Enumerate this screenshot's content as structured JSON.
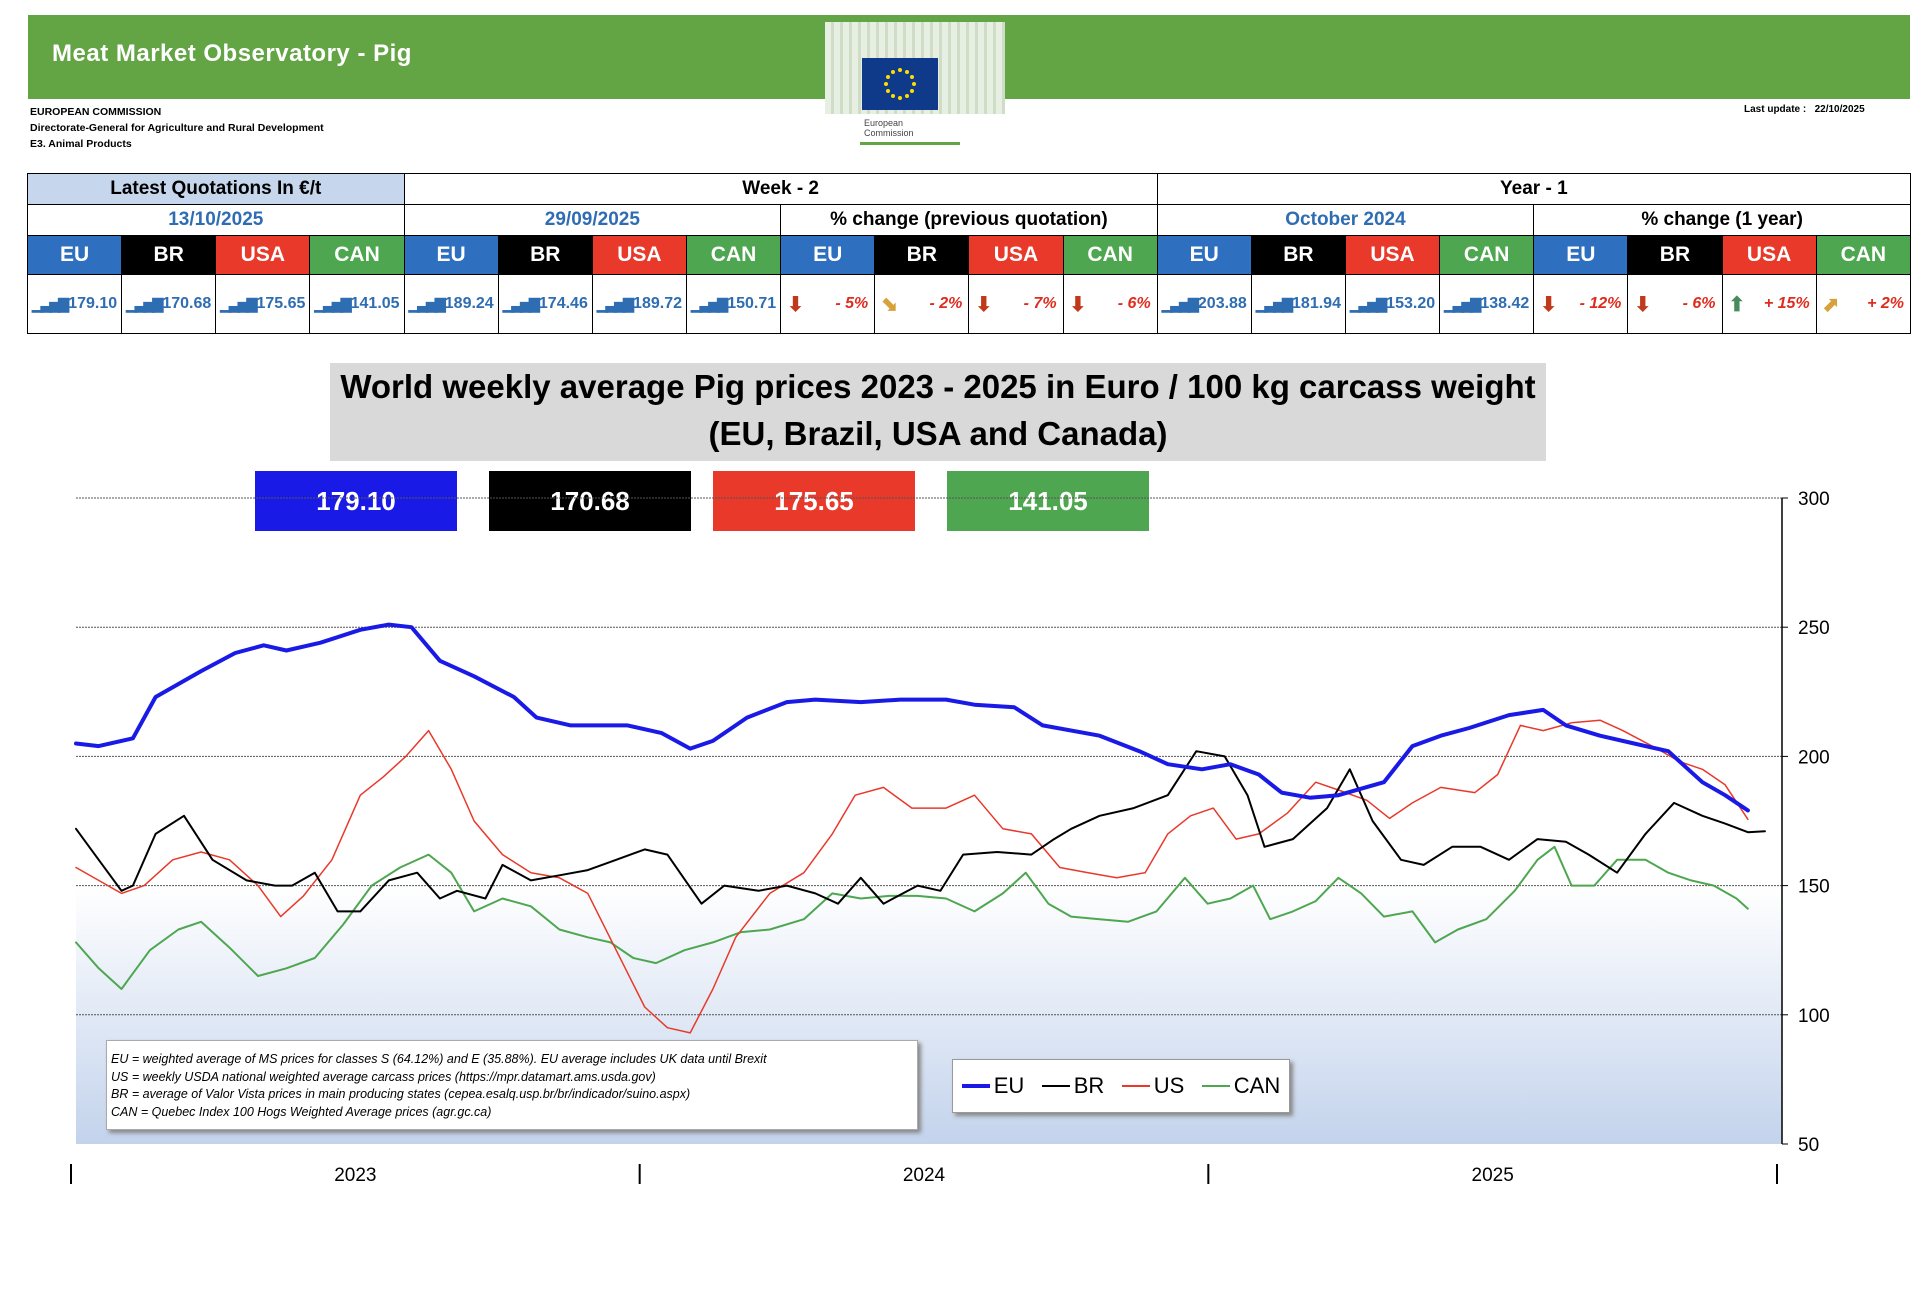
{
  "header": {
    "title": "Meat Market Observatory - Pig",
    "logo_text": [
      "European",
      "Commission"
    ],
    "org": [
      "EUROPEAN COMMISSION",
      "Directorate-General for Agriculture and Rural Development",
      "E3. Animal Products"
    ],
    "last_update_label": "Last update :",
    "last_update": "22/10/2025"
  },
  "quotations": {
    "latest_label": "Latest Quotations In €/t",
    "week_label": "Week - 2",
    "year_label": "Year - 1",
    "latest_date": "13/10/2025",
    "week_date": "29/09/2025",
    "week_change_label": "% change (previous quotation)",
    "year_date": "October 2024",
    "year_change_label": "% change (1 year)",
    "countries": [
      "EU",
      "BR",
      "USA",
      "CAN"
    ],
    "latest_values": [
      "179.10",
      "170.68",
      "175.65",
      "141.05"
    ],
    "week_values": [
      "189.24",
      "174.46",
      "189.72",
      "150.71"
    ],
    "week_changes": [
      "- 5%",
      "- 2%",
      "- 7%",
      "- 6%"
    ],
    "year_values": [
      "203.88",
      "181.94",
      "153.20",
      "138.42"
    ],
    "year_changes": [
      "- 12%",
      "- 6%",
      "+ 15%",
      "+ 2%"
    ],
    "colors": {
      "eu": "#2e6fc0",
      "br": "#000000",
      "usa": "#e8392a",
      "can": "#4ea750",
      "down": "#c0391b",
      "up": "#4a8a5f",
      "neutral": "#d6a23c"
    }
  },
  "chart_title": [
    "World weekly average Pig prices 2023 - 2025  in Euro / 100 kg carcass weight",
    "(EU, Brazil, USA and Canada)"
  ],
  "value_boxes": [
    "179.10",
    "170.68",
    "175.65",
    "141.05"
  ],
  "legend": [
    "EU",
    "BR",
    "US",
    "CAN"
  ],
  "notes": [
    "EU    = weighted average of MS prices for classes S (64.12%) and E (35.88%). EU average includes UK data  until Brexit",
    "US    = weekly USDA national weighted average carcass prices (https://mpr.datamart.ams.usda.gov)",
    "BR    = average of Valor Vista prices in main producing states (cepea.esalq.usp.br/br/indicador/suino.aspx)",
    "CAN = Quebec Index 100 Hogs Weighted Average prices (agr.gc.ca)"
  ],
  "chart_data": {
    "type": "line",
    "x_unit": "year (decimal)",
    "x_range": [
      2023,
      2026
    ],
    "x_tick_labels": [
      "2023",
      "2024",
      "2025"
    ],
    "ylim": [
      50,
      300
    ],
    "y_ticks": [
      50,
      100,
      150,
      200,
      250,
      300
    ],
    "y_axis_position": "right",
    "legend_position": "bottom-center",
    "series": [
      {
        "name": "EU",
        "color": "#1a1ae6",
        "width": 4,
        "points": [
          [
            2023.0,
            205
          ],
          [
            2023.04,
            204
          ],
          [
            2023.1,
            207
          ],
          [
            2023.14,
            223
          ],
          [
            2023.22,
            233
          ],
          [
            2023.28,
            240
          ],
          [
            2023.33,
            243
          ],
          [
            2023.37,
            241
          ],
          [
            2023.43,
            244
          ],
          [
            2023.5,
            249
          ],
          [
            2023.55,
            251
          ],
          [
            2023.59,
            250
          ],
          [
            2023.64,
            237
          ],
          [
            2023.7,
            231
          ],
          [
            2023.77,
            223
          ],
          [
            2023.81,
            215
          ],
          [
            2023.87,
            212
          ],
          [
            2023.92,
            212
          ],
          [
            2023.97,
            212
          ],
          [
            2024.03,
            209
          ],
          [
            2024.08,
            203
          ],
          [
            2024.12,
            206
          ],
          [
            2024.18,
            215
          ],
          [
            2024.25,
            221
          ],
          [
            2024.3,
            222
          ],
          [
            2024.38,
            221
          ],
          [
            2024.45,
            222
          ],
          [
            2024.53,
            222
          ],
          [
            2024.58,
            220
          ],
          [
            2024.65,
            219
          ],
          [
            2024.7,
            212
          ],
          [
            2024.8,
            208
          ],
          [
            2024.87,
            202
          ],
          [
            2024.92,
            197
          ],
          [
            2024.98,
            195
          ],
          [
            2025.03,
            197
          ],
          [
            2025.08,
            193
          ],
          [
            2025.12,
            186
          ],
          [
            2025.17,
            184
          ],
          [
            2025.22,
            185
          ],
          [
            2025.3,
            190
          ],
          [
            2025.35,
            204
          ],
          [
            2025.4,
            208
          ],
          [
            2025.45,
            211
          ],
          [
            2025.52,
            216
          ],
          [
            2025.58,
            218
          ],
          [
            2025.62,
            212
          ],
          [
            2025.68,
            208
          ],
          [
            2025.74,
            205
          ],
          [
            2025.8,
            202
          ],
          [
            2025.83,
            196
          ],
          [
            2025.86,
            190
          ],
          [
            2025.9,
            185
          ],
          [
            2025.94,
            179.1
          ]
        ]
      },
      {
        "name": "BR",
        "color": "#000000",
        "width": 2,
        "points": [
          [
            2023.0,
            172
          ],
          [
            2023.04,
            160
          ],
          [
            2023.08,
            148
          ],
          [
            2023.1,
            150
          ],
          [
            2023.14,
            170
          ],
          [
            2023.19,
            177
          ],
          [
            2023.24,
            160
          ],
          [
            2023.3,
            152
          ],
          [
            2023.35,
            150
          ],
          [
            2023.38,
            150
          ],
          [
            2023.42,
            155
          ],
          [
            2023.46,
            140
          ],
          [
            2023.5,
            140
          ],
          [
            2023.55,
            152
          ],
          [
            2023.6,
            155
          ],
          [
            2023.64,
            145
          ],
          [
            2023.67,
            148
          ],
          [
            2023.72,
            145
          ],
          [
            2023.75,
            158
          ],
          [
            2023.8,
            152
          ],
          [
            2023.85,
            154
          ],
          [
            2023.9,
            156
          ],
          [
            2023.95,
            160
          ],
          [
            2024.0,
            164
          ],
          [
            2024.04,
            162
          ],
          [
            2024.1,
            143
          ],
          [
            2024.14,
            150
          ],
          [
            2024.2,
            148
          ],
          [
            2024.25,
            150
          ],
          [
            2024.3,
            147
          ],
          [
            2024.34,
            143
          ],
          [
            2024.38,
            153
          ],
          [
            2024.42,
            143
          ],
          [
            2024.48,
            150
          ],
          [
            2024.52,
            148
          ],
          [
            2024.56,
            162
          ],
          [
            2024.62,
            163
          ],
          [
            2024.68,
            162
          ],
          [
            2024.72,
            168
          ],
          [
            2024.75,
            172
          ],
          [
            2024.8,
            177
          ],
          [
            2024.86,
            180
          ],
          [
            2024.92,
            185
          ],
          [
            2024.97,
            202
          ],
          [
            2025.02,
            200
          ],
          [
            2025.06,
            185
          ],
          [
            2025.09,
            165
          ],
          [
            2025.14,
            168
          ],
          [
            2025.2,
            180
          ],
          [
            2025.24,
            195
          ],
          [
            2025.28,
            175
          ],
          [
            2025.33,
            160
          ],
          [
            2025.37,
            158
          ],
          [
            2025.42,
            165
          ],
          [
            2025.47,
            165
          ],
          [
            2025.52,
            160
          ],
          [
            2025.57,
            168
          ],
          [
            2025.62,
            167
          ],
          [
            2025.66,
            162
          ],
          [
            2025.71,
            155
          ],
          [
            2025.76,
            170
          ],
          [
            2025.81,
            182
          ],
          [
            2025.86,
            177
          ],
          [
            2025.9,
            174
          ],
          [
            2025.94,
            170.68
          ],
          [
            2025.97,
            171
          ]
        ]
      },
      {
        "name": "US",
        "color": "#e8392a",
        "width": 1.5,
        "points": [
          [
            2023.0,
            157
          ],
          [
            2023.04,
            152
          ],
          [
            2023.08,
            147
          ],
          [
            2023.12,
            150
          ],
          [
            2023.17,
            160
          ],
          [
            2023.22,
            163
          ],
          [
            2023.27,
            160
          ],
          [
            2023.32,
            150
          ],
          [
            2023.36,
            138
          ],
          [
            2023.4,
            146
          ],
          [
            2023.45,
            160
          ],
          [
            2023.5,
            185
          ],
          [
            2023.54,
            192
          ],
          [
            2023.58,
            200
          ],
          [
            2023.62,
            210
          ],
          [
            2023.66,
            195
          ],
          [
            2023.7,
            175
          ],
          [
            2023.75,
            162
          ],
          [
            2023.8,
            155
          ],
          [
            2023.85,
            153
          ],
          [
            2023.9,
            147
          ],
          [
            2023.95,
            125
          ],
          [
            2024.0,
            103
          ],
          [
            2024.04,
            95
          ],
          [
            2024.08,
            93
          ],
          [
            2024.12,
            110
          ],
          [
            2024.16,
            130
          ],
          [
            2024.22,
            147
          ],
          [
            2024.28,
            155
          ],
          [
            2024.33,
            170
          ],
          [
            2024.37,
            185
          ],
          [
            2024.42,
            188
          ],
          [
            2024.47,
            180
          ],
          [
            2024.53,
            180
          ],
          [
            2024.58,
            185
          ],
          [
            2024.63,
            172
          ],
          [
            2024.68,
            170
          ],
          [
            2024.73,
            157
          ],
          [
            2024.78,
            155
          ],
          [
            2024.83,
            153
          ],
          [
            2024.88,
            155
          ],
          [
            2024.92,
            170
          ],
          [
            2024.96,
            177
          ],
          [
            2025.0,
            180
          ],
          [
            2025.04,
            168
          ],
          [
            2025.08,
            170
          ],
          [
            2025.13,
            178
          ],
          [
            2025.18,
            190
          ],
          [
            2025.22,
            187
          ],
          [
            2025.27,
            183
          ],
          [
            2025.31,
            176
          ],
          [
            2025.35,
            182
          ],
          [
            2025.4,
            188
          ],
          [
            2025.46,
            186
          ],
          [
            2025.5,
            193
          ],
          [
            2025.54,
            212
          ],
          [
            2025.58,
            210
          ],
          [
            2025.63,
            213
          ],
          [
            2025.68,
            214
          ],
          [
            2025.72,
            210
          ],
          [
            2025.78,
            203
          ],
          [
            2025.82,
            198
          ],
          [
            2025.86,
            195
          ],
          [
            2025.9,
            189
          ],
          [
            2025.94,
            175.65
          ]
        ]
      },
      {
        "name": "CAN",
        "color": "#4ea750",
        "width": 2,
        "points": [
          [
            2023.0,
            128
          ],
          [
            2023.04,
            118
          ],
          [
            2023.08,
            110
          ],
          [
            2023.13,
            125
          ],
          [
            2023.18,
            133
          ],
          [
            2023.22,
            136
          ],
          [
            2023.27,
            126
          ],
          [
            2023.32,
            115
          ],
          [
            2023.37,
            118
          ],
          [
            2023.42,
            122
          ],
          [
            2023.47,
            135
          ],
          [
            2023.52,
            150
          ],
          [
            2023.57,
            157
          ],
          [
            2023.62,
            162
          ],
          [
            2023.66,
            155
          ],
          [
            2023.7,
            140
          ],
          [
            2023.75,
            145
          ],
          [
            2023.8,
            142
          ],
          [
            2023.85,
            133
          ],
          [
            2023.9,
            130
          ],
          [
            2023.94,
            128
          ],
          [
            2023.98,
            122
          ],
          [
            2024.02,
            120
          ],
          [
            2024.07,
            125
          ],
          [
            2024.12,
            128
          ],
          [
            2024.17,
            132
          ],
          [
            2024.22,
            133
          ],
          [
            2024.28,
            137
          ],
          [
            2024.33,
            147
          ],
          [
            2024.38,
            145
          ],
          [
            2024.43,
            146
          ],
          [
            2024.48,
            146
          ],
          [
            2024.53,
            145
          ],
          [
            2024.58,
            140
          ],
          [
            2024.63,
            147
          ],
          [
            2024.67,
            155
          ],
          [
            2024.71,
            143
          ],
          [
            2024.75,
            138
          ],
          [
            2024.8,
            137
          ],
          [
            2024.85,
            136
          ],
          [
            2024.9,
            140
          ],
          [
            2024.95,
            153
          ],
          [
            2024.99,
            143
          ],
          [
            2025.03,
            145
          ],
          [
            2025.07,
            150
          ],
          [
            2025.1,
            137
          ],
          [
            2025.14,
            140
          ],
          [
            2025.18,
            144
          ],
          [
            2025.22,
            153
          ],
          [
            2025.26,
            147
          ],
          [
            2025.3,
            138
          ],
          [
            2025.35,
            140
          ],
          [
            2025.39,
            128
          ],
          [
            2025.43,
            133
          ],
          [
            2025.48,
            137
          ],
          [
            2025.53,
            148
          ],
          [
            2025.57,
            160
          ],
          [
            2025.6,
            165
          ],
          [
            2025.63,
            150
          ],
          [
            2025.67,
            150
          ],
          [
            2025.71,
            160
          ],
          [
            2025.76,
            160
          ],
          [
            2025.8,
            155
          ],
          [
            2025.84,
            152
          ],
          [
            2025.88,
            150
          ],
          [
            2025.92,
            145
          ],
          [
            2025.94,
            141.05
          ]
        ]
      }
    ]
  }
}
